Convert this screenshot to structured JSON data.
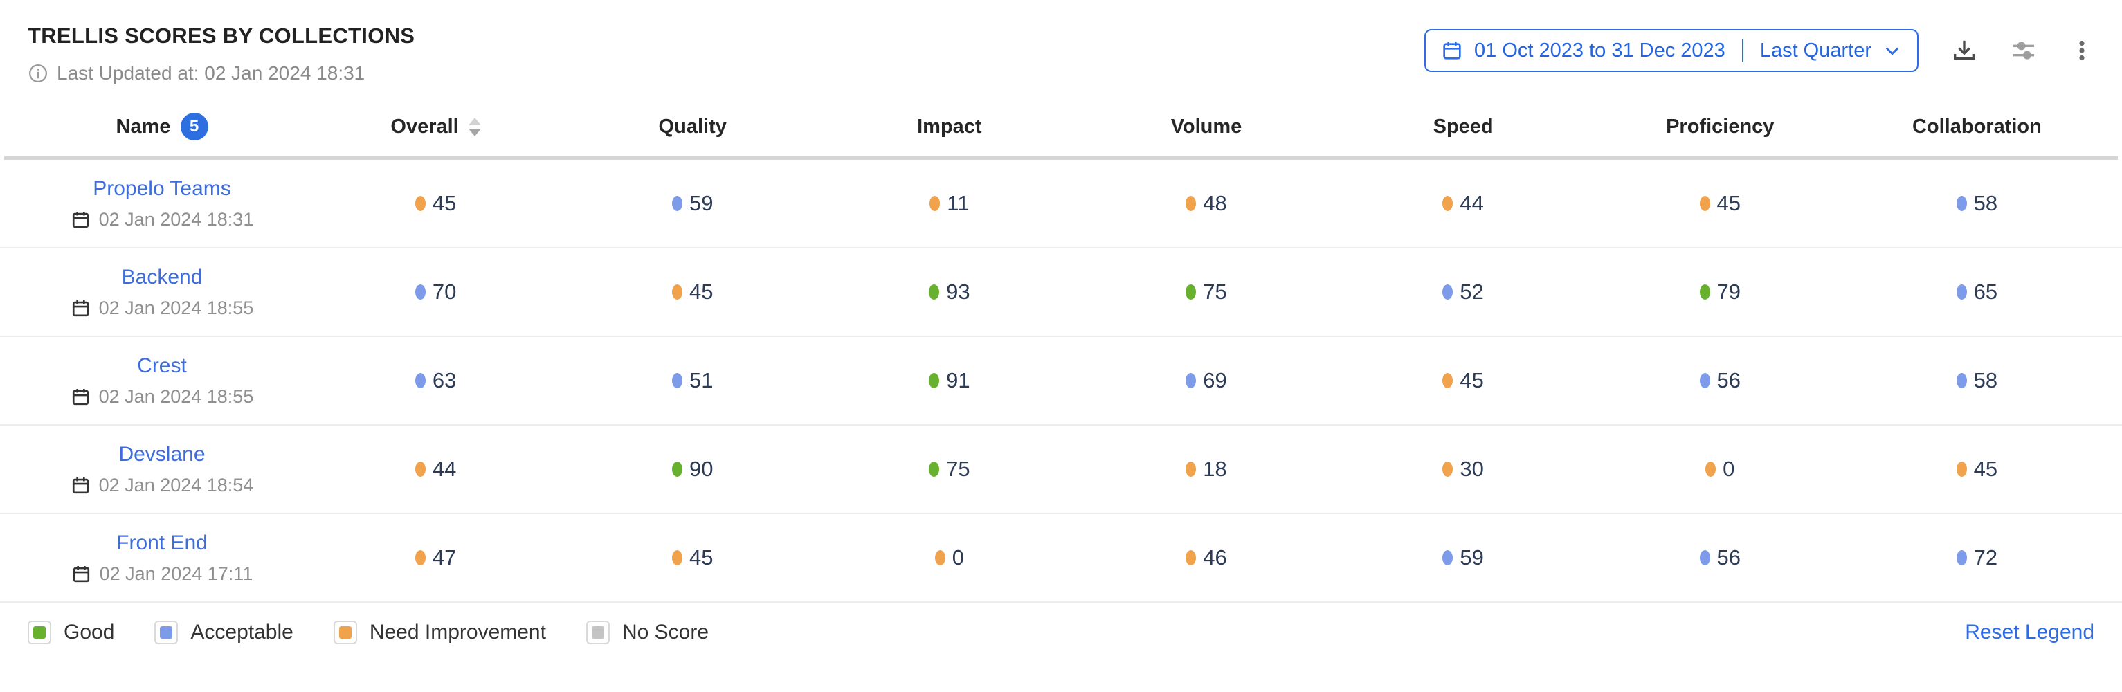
{
  "header": {
    "title": "TRELLIS SCORES BY COLLECTIONS",
    "last_updated": "Last Updated at: 02 Jan 2024 18:31",
    "date_range": {
      "range": "01 Oct 2023 to 31 Dec 2023",
      "preset": "Last Quarter"
    },
    "icons": [
      "info-icon",
      "calendar-icon",
      "chevron-down-icon",
      "download-icon",
      "sliders-icon",
      "kebab-menu-icon"
    ]
  },
  "table": {
    "columns": [
      "Name",
      "Overall",
      "Quality",
      "Impact",
      "Volume",
      "Speed",
      "Proficiency",
      "Collaboration"
    ],
    "name_badge_count": "5",
    "rows": [
      {
        "name": "Propelo Teams",
        "updated": "02 Jan 2024 18:31",
        "scores": [
          {
            "v": 45,
            "c": "orange"
          },
          {
            "v": 59,
            "c": "blue"
          },
          {
            "v": 11,
            "c": "orange"
          },
          {
            "v": 48,
            "c": "orange"
          },
          {
            "v": 44,
            "c": "orange"
          },
          {
            "v": 45,
            "c": "orange"
          },
          {
            "v": 58,
            "c": "blue"
          }
        ]
      },
      {
        "name": "Backend",
        "updated": "02 Jan 2024 18:55",
        "scores": [
          {
            "v": 70,
            "c": "blue"
          },
          {
            "v": 45,
            "c": "orange"
          },
          {
            "v": 93,
            "c": "green"
          },
          {
            "v": 75,
            "c": "green"
          },
          {
            "v": 52,
            "c": "blue"
          },
          {
            "v": 79,
            "c": "green"
          },
          {
            "v": 65,
            "c": "blue"
          }
        ]
      },
      {
        "name": "Crest",
        "updated": "02 Jan 2024 18:55",
        "scores": [
          {
            "v": 63,
            "c": "blue"
          },
          {
            "v": 51,
            "c": "blue"
          },
          {
            "v": 91,
            "c": "green"
          },
          {
            "v": 69,
            "c": "blue"
          },
          {
            "v": 45,
            "c": "orange"
          },
          {
            "v": 56,
            "c": "blue"
          },
          {
            "v": 58,
            "c": "blue"
          }
        ]
      },
      {
        "name": "Devslane",
        "updated": "02 Jan 2024 18:54",
        "scores": [
          {
            "v": 44,
            "c": "orange"
          },
          {
            "v": 90,
            "c": "green"
          },
          {
            "v": 75,
            "c": "green"
          },
          {
            "v": 18,
            "c": "orange"
          },
          {
            "v": 30,
            "c": "orange"
          },
          {
            "v": 0,
            "c": "orange"
          },
          {
            "v": 45,
            "c": "orange"
          }
        ]
      },
      {
        "name": "Front End",
        "updated": "02 Jan 2024 17:11",
        "scores": [
          {
            "v": 47,
            "c": "orange"
          },
          {
            "v": 45,
            "c": "orange"
          },
          {
            "v": 0,
            "c": "orange"
          },
          {
            "v": 46,
            "c": "orange"
          },
          {
            "v": 59,
            "c": "blue"
          },
          {
            "v": 56,
            "c": "blue"
          },
          {
            "v": 72,
            "c": "blue"
          }
        ]
      }
    ]
  },
  "legend": {
    "items": [
      {
        "label": "Good",
        "color": "#68B12E"
      },
      {
        "label": "Acceptable",
        "color": "#7D9BE8"
      },
      {
        "label": "Need Improvement",
        "color": "#F0A24C"
      },
      {
        "label": "No Score",
        "color": "#C4C4C4"
      }
    ],
    "reset_label": "Reset Legend"
  },
  "colors": {
    "green": "#68B12E",
    "blue": "#7D9BE8",
    "orange": "#F0A24C",
    "gray": "#C4C4C4",
    "link": "#3D6DDC",
    "accent": "#2D6CE5"
  }
}
